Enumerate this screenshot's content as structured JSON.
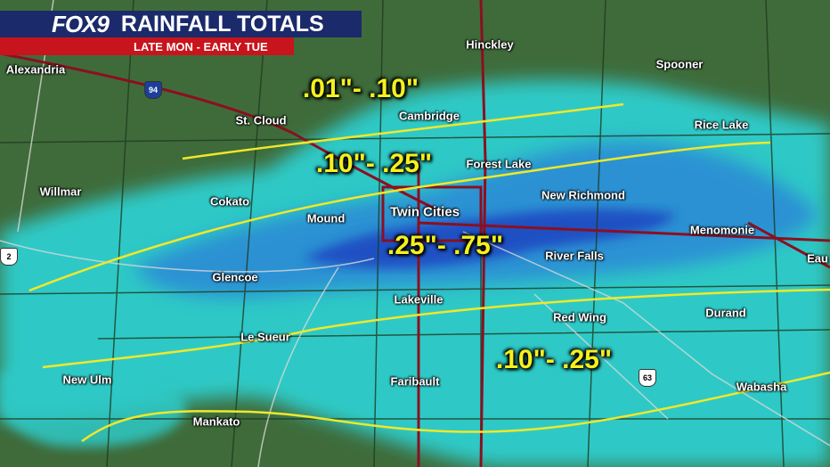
{
  "header": {
    "logo": "FOX9",
    "title": "RAINFALL TOTALS",
    "subtitle": "LATE MON - EARLY TUE"
  },
  "colors": {
    "land": "#3f6b3a",
    "rain_light": "#2fc9c6",
    "rain_mod": "#2a7fd8",
    "rain_heavy": "#1a3fc0",
    "contour": "#f0e82a",
    "highway": "#8a1020",
    "header_blue": "#1a2a6a",
    "header_red": "#c8141c"
  },
  "ranges": [
    ".01\"- .10\"",
    ".10\"- .25\"",
    ".25\"- .75\"",
    ".10\"- .25\""
  ],
  "cities": [
    "Alexandria",
    "Hinckley",
    "Spooner",
    "St. Cloud",
    "Cambridge",
    "Rice Lake",
    "Forest Lake",
    "Willmar",
    "Cokato",
    "New Richmond",
    "Twin Cities",
    "Mound",
    "Menomonie",
    "Eau",
    "Glencoe",
    "River Falls",
    "Lakeville",
    "Red Wing",
    "Durand",
    "Le Sueur",
    "New Ulm",
    "Faribault",
    "Wabasha",
    "Mankato"
  ],
  "shields": [
    "94",
    "63",
    "2"
  ]
}
